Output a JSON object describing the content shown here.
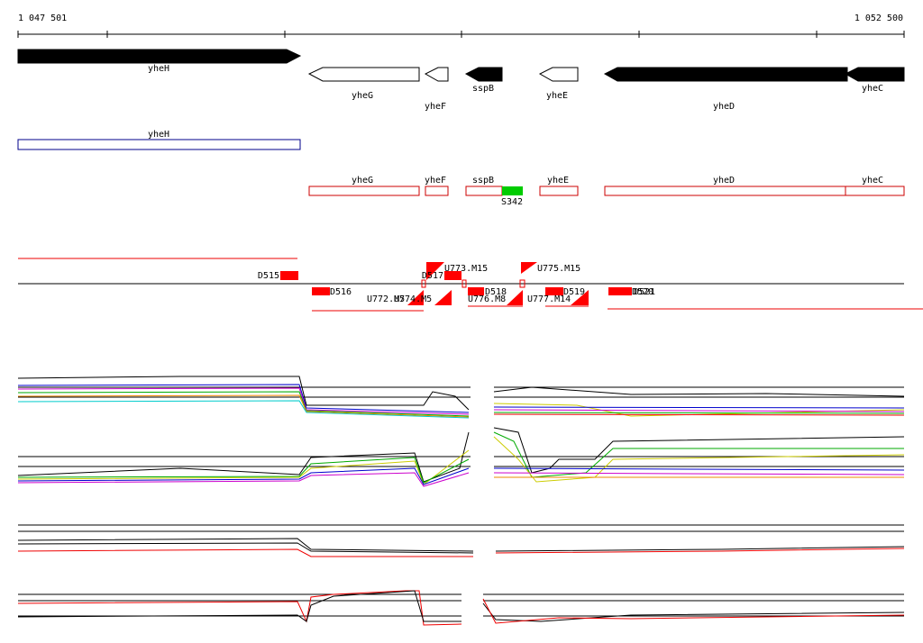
{
  "ruler": {
    "start": "1 047 501",
    "end": "1 052 500"
  },
  "genes": [
    "yheH",
    "yheG",
    "yheF",
    "sspB",
    "yheE",
    "yheD",
    "yheC"
  ],
  "blue_feature": "yheH",
  "cds": [
    "yheG",
    "yheF",
    "sspB",
    "yheE",
    "yheD",
    "yheC"
  ],
  "green_feature": "S342",
  "segments": [
    "D515",
    "D516",
    "D517",
    "U773.M15",
    "U772.M5",
    "U774.M5",
    "D518",
    "U776.M8",
    "U775.M15",
    "D519",
    "U777.M14",
    "D520",
    "D521"
  ]
}
